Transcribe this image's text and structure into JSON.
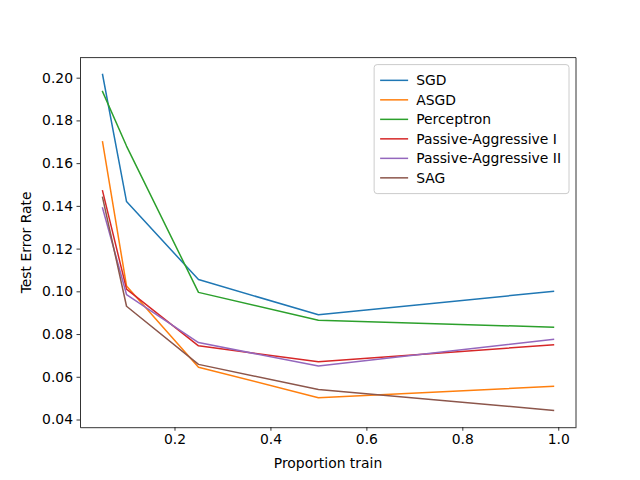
{
  "chart_data": {
    "type": "line",
    "x_label": "Proportion train",
    "y_label": "Test Error Rate",
    "x": [
      0.05,
      0.1,
      0.25,
      0.5,
      0.99
    ],
    "series": [
      {
        "name": "SGD",
        "color": "#1f77b4",
        "values": [
          0.2015,
          0.142,
          0.1055,
          0.089,
          0.1
        ]
      },
      {
        "name": "ASGD",
        "color": "#ff7f0e",
        "values": [
          0.17,
          0.1025,
          0.0645,
          0.0502,
          0.0555
        ]
      },
      {
        "name": "Perceptron",
        "color": "#2ca02c",
        "values": [
          0.1935,
          0.168,
          0.0995,
          0.0865,
          0.0832
        ]
      },
      {
        "name": "Passive-Aggressive I",
        "color": "#d62728",
        "values": [
          0.147,
          0.101,
          0.0745,
          0.067,
          0.075
        ]
      },
      {
        "name": "Passive-Aggressive II",
        "color": "#9467bd",
        "values": [
          0.139,
          0.0985,
          0.076,
          0.065,
          0.0775
        ]
      },
      {
        "name": "SAG",
        "color": "#8c564b",
        "values": [
          0.144,
          0.093,
          0.0658,
          0.054,
          0.0443
        ]
      }
    ],
    "xlim": [
      0.003,
      1.037
    ],
    "ylim": [
      0.0364,
      0.2094
    ],
    "xticks": [
      0.2,
      0.4,
      0.6,
      0.8,
      {
        "value": 1,
        "label": "1.0"
      }
    ],
    "yticks": [
      0.04,
      0.06,
      0.08,
      {
        "value": 0.1,
        "label": "0.10"
      },
      0.12,
      0.14,
      0.16,
      0.18,
      {
        "value": 0.2,
        "label": "0.20"
      }
    ],
    "legend": "upper right",
    "grid": false
  }
}
